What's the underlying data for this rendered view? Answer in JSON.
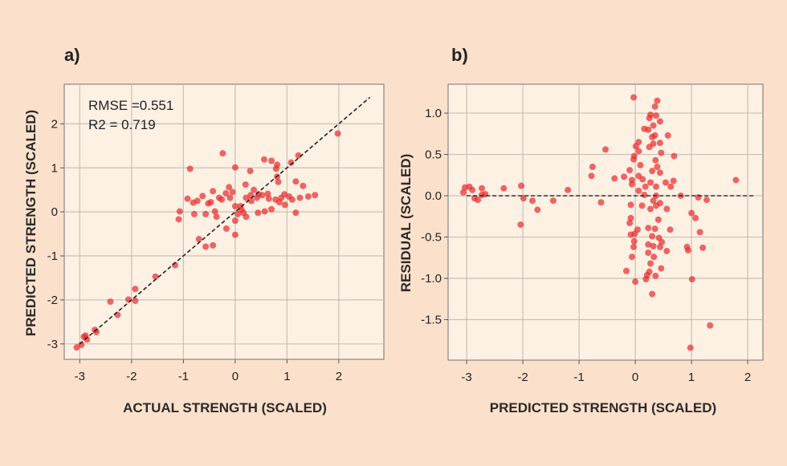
{
  "colors": {
    "background": "#fbe1cb",
    "plot_background": "#fdf1e4",
    "points": "#e8282c",
    "grid": "#c9c0b6",
    "reference_line": "#222222"
  },
  "chart_data": [
    {
      "type": "scatter",
      "panel_label": "a)",
      "xlabel": "ACTUAL STRENGTH (SCALED)",
      "ylabel": "PREDICTED STRENGTH (SCALED)",
      "xlim": [
        -3.3,
        2.87
      ],
      "ylim": [
        -3.35,
        2.9
      ],
      "xticks": [
        -3,
        -2,
        -1,
        0,
        1,
        2
      ],
      "yticks": [
        -3,
        -2,
        -1,
        0,
        1,
        2
      ],
      "xtick_labels": [
        "-3",
        "-2",
        "-1",
        "0",
        "1",
        "2"
      ],
      "ytick_labels": [
        "-3",
        "-2",
        "-1",
        "0",
        "1",
        "2"
      ],
      "grid": true,
      "annotations": [
        "RMSE =0.551",
        "R2 = 0.719"
      ],
      "reference_line": {
        "style": "dashed",
        "from": [
          -3,
          -3
        ],
        "to": [
          2.6,
          2.6
        ]
      },
      "points": [
        [
          1.98,
          1.78
        ],
        [
          -0.24,
          1.33
        ],
        [
          -0.87,
          0.98
        ],
        [
          0,
          1.01
        ],
        [
          0.56,
          1.19
        ],
        [
          0.7,
          1.16
        ],
        [
          0.81,
          1.07
        ],
        [
          0.79,
          0.98
        ],
        [
          1.22,
          1.28
        ],
        [
          1.08,
          1.12
        ],
        [
          0.29,
          0.93
        ],
        [
          1.17,
          0.69
        ],
        [
          1.31,
          0.59
        ],
        [
          0.83,
          0.68
        ],
        [
          0.81,
          0.8
        ],
        [
          0.2,
          0.62
        ],
        [
          1.54,
          0.38
        ],
        [
          1.41,
          0.35
        ],
        [
          1.17,
          -0.02
        ],
        [
          0.96,
          0.16
        ],
        [
          -1.09,
          -0.17
        ],
        [
          -1.07,
          0.01
        ],
        [
          -0.92,
          0.3
        ],
        [
          -0.81,
          0.21
        ],
        [
          -0.63,
          0.36
        ],
        [
          -0.43,
          0.47
        ],
        [
          -0.12,
          0.56
        ],
        [
          -0.18,
          0.42
        ],
        [
          -0.79,
          -0.05
        ],
        [
          -0.57,
          -0.05
        ],
        [
          -0.39,
          0.01
        ],
        [
          -0.36,
          -0.11
        ],
        [
          -0.17,
          -0.38
        ],
        [
          0,
          -0.52
        ],
        [
          -0.7,
          -0.62
        ],
        [
          -0.57,
          -0.79
        ],
        [
          -0.43,
          -0.76
        ],
        [
          0,
          -0.2
        ],
        [
          0.05,
          -0.05
        ],
        [
          0.21,
          -0.11
        ],
        [
          0.1,
          0.13
        ],
        [
          0.31,
          0.25
        ],
        [
          0.42,
          0.32
        ],
        [
          0.52,
          0.38
        ],
        [
          0.63,
          0.41
        ],
        [
          0.78,
          0.28
        ],
        [
          0.89,
          0.32
        ],
        [
          1.04,
          0.35
        ],
        [
          1.25,
          0.32
        ],
        [
          0.44,
          -0.02
        ],
        [
          0.57,
          0.01
        ],
        [
          0.7,
          0.06
        ],
        [
          -0.26,
          0.28
        ],
        [
          -0.52,
          0.19
        ],
        [
          -0.31,
          0.32
        ],
        [
          0.36,
          0.5
        ],
        [
          0.21,
          0.32
        ],
        [
          -0.1,
          0.32
        ],
        [
          -0.73,
          0.25
        ],
        [
          -0.47,
          0.22
        ],
        [
          0,
          0.13
        ],
        [
          0.16,
          -0.02
        ],
        [
          0.45,
          0.4
        ],
        [
          0.12,
          0.05
        ],
        [
          -0.05,
          0.45
        ],
        [
          0.65,
          0.3
        ],
        [
          0.95,
          0.4
        ],
        [
          1.1,
          0.28
        ],
        [
          0.85,
          0.22
        ],
        [
          0.3,
          0.38
        ],
        [
          -1.16,
          -1.21
        ],
        [
          -1.54,
          -1.47
        ],
        [
          -1.93,
          -1.75
        ],
        [
          -1.93,
          -2.02
        ],
        [
          -2.06,
          -1.99
        ],
        [
          -2.41,
          -2.04
        ],
        [
          -2.27,
          -2.34
        ],
        [
          -2.68,
          -2.73
        ],
        [
          -2.71,
          -2.68
        ],
        [
          -2.86,
          -2.9
        ],
        [
          -2.92,
          -2.84
        ],
        [
          -2.97,
          -3.02
        ],
        [
          -3.06,
          -3.08
        ],
        [
          -2.89,
          -2.81
        ]
      ]
    },
    {
      "type": "scatter",
      "panel_label": "b)",
      "xlabel": "PREDICTED STRENGTH (SCALED)",
      "ylabel": "RESIDUAL (SCALED)",
      "xlim": [
        -3.33,
        2.27
      ],
      "ylim": [
        -1.99,
        1.35
      ],
      "xticks": [
        -3,
        -2,
        -1,
        0,
        1,
        2
      ],
      "yticks": [
        -1.5,
        -1.0,
        -0.5,
        0.0,
        0.5,
        1.0
      ],
      "xtick_labels": [
        "-3",
        "-2",
        "-1",
        "0",
        "1",
        "2"
      ],
      "ytick_labels": [
        "-1.5",
        "-1.0",
        "-0.5",
        "0.0",
        "0.5",
        "1.0"
      ],
      "grid": true,
      "reference_line": {
        "style": "dashed",
        "from": [
          -3,
          0
        ],
        "to": [
          2.1,
          0
        ]
      },
      "points": [
        [
          -0.03,
          1.19
        ],
        [
          0.39,
          1.15
        ],
        [
          0.35,
          1.08
        ],
        [
          0.27,
          0.98
        ],
        [
          0.37,
          0.97
        ],
        [
          0.25,
          0.94
        ],
        [
          0.44,
          0.9
        ],
        [
          0.32,
          0.85
        ],
        [
          0.16,
          0.81
        ],
        [
          0.23,
          0.8
        ],
        [
          0.35,
          0.73
        ],
        [
          0.58,
          0.73
        ],
        [
          0.3,
          0.71
        ],
        [
          0.06,
          0.65
        ],
        [
          0.44,
          0.64
        ],
        [
          0.01,
          0.6
        ],
        [
          0.25,
          0.59
        ],
        [
          0.32,
          0.63
        ],
        [
          -0.53,
          0.56
        ],
        [
          0.06,
          0.54
        ],
        [
          0.46,
          0.52
        ],
        [
          0.69,
          0.48
        ],
        [
          -0.02,
          0.48
        ],
        [
          -0.03,
          0.44
        ],
        [
          0.36,
          0.43
        ],
        [
          0.09,
          0.37
        ],
        [
          -0.76,
          0.35
        ],
        [
          0.39,
          0.35
        ],
        [
          -0.1,
          0.31
        ],
        [
          0.3,
          0.3
        ],
        [
          0.44,
          0.28
        ],
        [
          -0.78,
          0.24
        ],
        [
          0.06,
          0.24
        ],
        [
          -0.2,
          0.23
        ],
        [
          -0.37,
          0.21
        ],
        [
          0.13,
          0.2
        ],
        [
          -0.06,
          0.19
        ],
        [
          1.79,
          0.19
        ],
        [
          0.68,
          0.18
        ],
        [
          0.54,
          0.16
        ],
        [
          0.27,
          0.16
        ],
        [
          -0.06,
          0.14
        ],
        [
          0.37,
          0.11
        ],
        [
          0.63,
          0.11
        ],
        [
          0.18,
          0.11
        ],
        [
          -1.2,
          0.07
        ],
        [
          0.06,
          0.06
        ],
        [
          -2.34,
          0.09
        ],
        [
          -2.03,
          0.12
        ],
        [
          -2.73,
          0.09
        ],
        [
          -2.95,
          0.11
        ],
        [
          -3.03,
          0.1
        ],
        [
          -3.06,
          0.04
        ],
        [
          -2.9,
          0.07
        ],
        [
          -2.86,
          -0.03
        ],
        [
          -2.8,
          -0.05
        ],
        [
          -2.73,
          0.01
        ],
        [
          -2.67,
          0.02
        ],
        [
          -1.99,
          -0.03
        ],
        [
          -1.83,
          -0.06
        ],
        [
          -1.74,
          -0.17
        ],
        [
          -2.04,
          -0.35
        ],
        [
          -1.46,
          -0.06
        ],
        [
          -0.61,
          -0.08
        ],
        [
          0.16,
          0.01
        ],
        [
          0.37,
          0.0
        ],
        [
          0.81,
          0.0
        ],
        [
          1.12,
          -0.02
        ],
        [
          1.27,
          -0.05
        ],
        [
          0.32,
          -0.06
        ],
        [
          0.44,
          -0.09
        ],
        [
          0.37,
          -0.12
        ],
        [
          0.12,
          -0.12
        ],
        [
          -0.08,
          -0.11
        ],
        [
          0.27,
          -0.16
        ],
        [
          0.56,
          -0.16
        ],
        [
          1.0,
          -0.21
        ],
        [
          1.07,
          -0.27
        ],
        [
          -0.08,
          -0.27
        ],
        [
          0.41,
          -0.29
        ],
        [
          -0.1,
          -0.33
        ],
        [
          0.04,
          -0.41
        ],
        [
          0.23,
          -0.39
        ],
        [
          0.35,
          -0.4
        ],
        [
          0.62,
          -0.41
        ],
        [
          1.15,
          -0.44
        ],
        [
          -0.08,
          -0.47
        ],
        [
          -0.01,
          -0.46
        ],
        [
          0.3,
          -0.49
        ],
        [
          0.42,
          -0.51
        ],
        [
          0.47,
          -0.56
        ],
        [
          -0.02,
          -0.55
        ],
        [
          0.23,
          -0.59
        ],
        [
          0.32,
          -0.61
        ],
        [
          0.44,
          -0.62
        ],
        [
          -0.03,
          -0.62
        ],
        [
          0.92,
          -0.62
        ],
        [
          1.2,
          -0.63
        ],
        [
          0.94,
          -0.66
        ],
        [
          0.56,
          -0.67
        ],
        [
          0.23,
          -0.69
        ],
        [
          0.33,
          -0.74
        ],
        [
          -0.06,
          -0.74
        ],
        [
          0.27,
          -0.82
        ],
        [
          0.46,
          -0.88
        ],
        [
          -0.16,
          -0.91
        ],
        [
          0.25,
          -0.92
        ],
        [
          0.21,
          -0.96
        ],
        [
          0.36,
          -0.97
        ],
        [
          0.19,
          -1.01
        ],
        [
          1.01,
          -1.01
        ],
        [
          0,
          -1.04
        ],
        [
          0.3,
          -1.19
        ],
        [
          1.33,
          -1.57
        ],
        [
          0.98,
          -1.84
        ]
      ]
    }
  ]
}
